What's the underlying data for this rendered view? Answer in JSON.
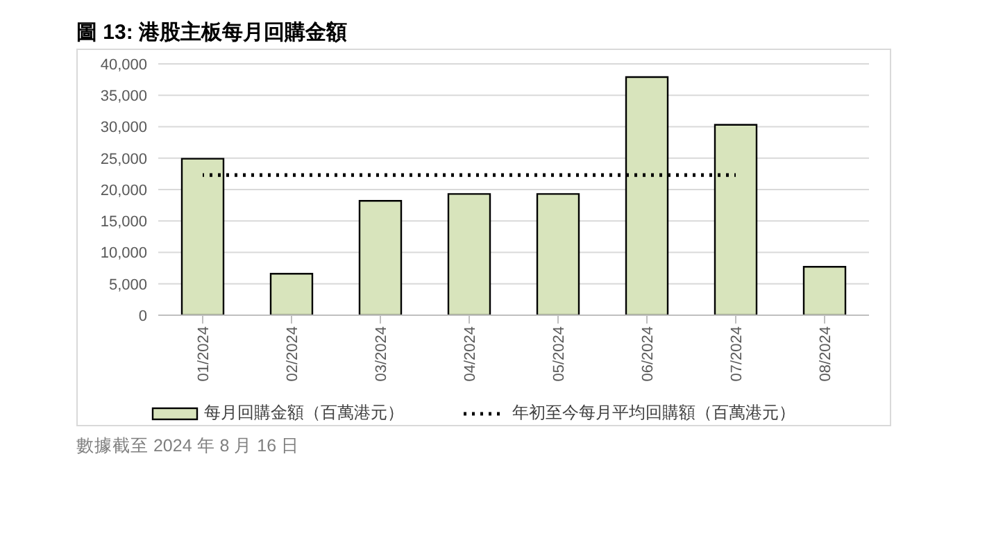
{
  "chart_data": {
    "type": "bar",
    "title": "圖 13:  港股主板每月回購金額",
    "categories": [
      "01/2024",
      "02/2024",
      "03/2024",
      "04/2024",
      "05/2024",
      "06/2024",
      "07/2024",
      "08/2024"
    ],
    "series": [
      {
        "name": "每月回購金額（百萬港元）",
        "color": "#d8e4bc",
        "values": [
          24900,
          6600,
          18200,
          19300,
          19300,
          37900,
          30300,
          7700
        ]
      },
      {
        "name": "年初至今每月平均回購額（百萬港元）",
        "type": "line",
        "color": "#000000",
        "line_style": "dotted",
        "marker": "none",
        "values": [
          22300,
          22300,
          22300,
          22300,
          22300,
          22300,
          22300,
          null
        ]
      }
    ],
    "ylim": [
      0,
      40000
    ],
    "yticks": [
      {
        "value": 0,
        "label": "0"
      },
      {
        "value": 5000,
        "label": "5,000"
      },
      {
        "value": 10000,
        "label": "10,000"
      },
      {
        "value": 15000,
        "label": "15,000"
      },
      {
        "value": 20000,
        "label": "20,000"
      },
      {
        "value": 25000,
        "label": "25,000"
      },
      {
        "value": 30000,
        "label": "30,000"
      },
      {
        "value": 35000,
        "label": "35,000"
      },
      {
        "value": 40000,
        "label": "40,000"
      }
    ],
    "grid": "y",
    "legend": "bottom",
    "annotations": [
      "數據截至 2024 年 8 月 16 日"
    ]
  }
}
